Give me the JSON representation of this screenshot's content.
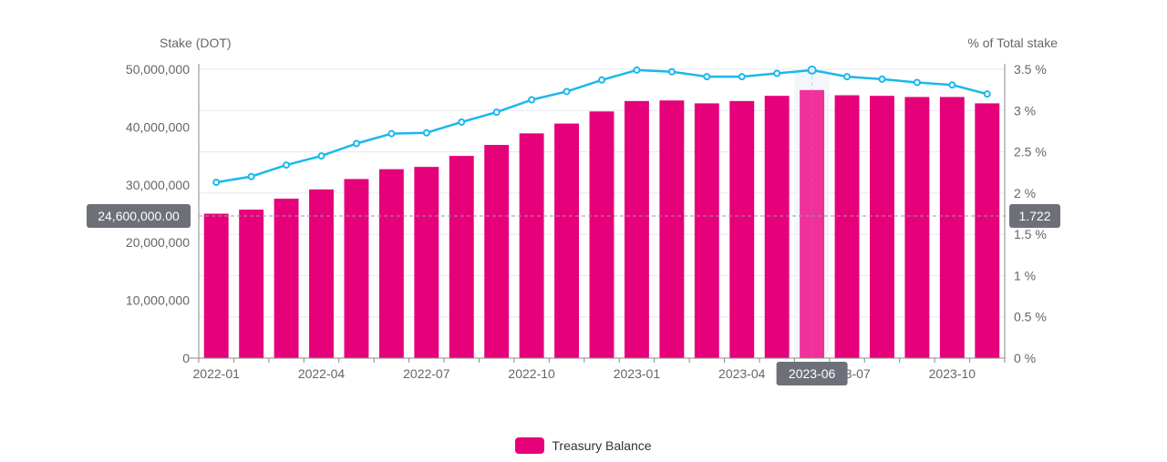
{
  "colors": {
    "bar": "#e6007a",
    "bar_highlight": "#f0319b",
    "line": "#1ab8ec",
    "grid": "#e6e8f0",
    "axis": "#8a8a8a",
    "tooltip_bg": "#6e7079",
    "crosshair": "#9a9a9a"
  },
  "chart_data": {
    "type": "bar",
    "categories": [
      "2022-01",
      "2022-02",
      "2022-03",
      "2022-04",
      "2022-05",
      "2022-06",
      "2022-07",
      "2022-08",
      "2022-09",
      "2022-10",
      "2022-11",
      "2022-12",
      "2023-01",
      "2023-02",
      "2023-03",
      "2023-04",
      "2023-05",
      "2023-06",
      "2023-07",
      "2023-08",
      "2023-09",
      "2023-10",
      "2023-11"
    ],
    "x_tick_labels": [
      "2022-01",
      "2022-04",
      "2022-07",
      "2022-10",
      "2023-01",
      "2023-04",
      "2023-07",
      "2023-10"
    ],
    "series": [
      {
        "name": "Treasury Balance",
        "type": "bar",
        "axis": "left",
        "values": [
          25000000,
          25700000,
          27600000,
          29200000,
          31000000,
          32700000,
          33100000,
          35000000,
          36900000,
          38900000,
          40600000,
          42700000,
          44500000,
          44600000,
          44100000,
          44500000,
          45400000,
          46400000,
          45500000,
          45400000,
          45200000,
          45200000,
          44100000
        ]
      },
      {
        "name": "% of Total stake",
        "type": "line",
        "axis": "right",
        "values": [
          2.13,
          2.2,
          2.34,
          2.45,
          2.6,
          2.72,
          2.73,
          2.86,
          2.98,
          3.13,
          3.23,
          3.37,
          3.49,
          3.47,
          3.41,
          3.41,
          3.45,
          3.49,
          3.41,
          3.38,
          3.34,
          3.31,
          3.2
        ]
      }
    ],
    "y_left": {
      "label": "Stake (DOT)",
      "min": 0,
      "max": 50000000,
      "ticks": [
        "0",
        "10,000,000",
        "20,000,000",
        "30,000,000",
        "40,000,000",
        "50,000,000"
      ]
    },
    "y_right": {
      "label": "% of Total stake",
      "min": 0,
      "max": 3.5,
      "ticks": [
        "0 %",
        "0.5 %",
        "1 %",
        "1.5 %",
        "2 %",
        "2.5 %",
        "3 %",
        "3.5 %"
      ]
    },
    "highlight_index": 17,
    "crosshair": {
      "left_value": 24600000,
      "left_label": "24,600,000.00",
      "right_label": "1.722",
      "x_label": "2023-06"
    },
    "grid": true
  },
  "legend": {
    "items": [
      {
        "label": "Treasury Balance"
      }
    ]
  }
}
